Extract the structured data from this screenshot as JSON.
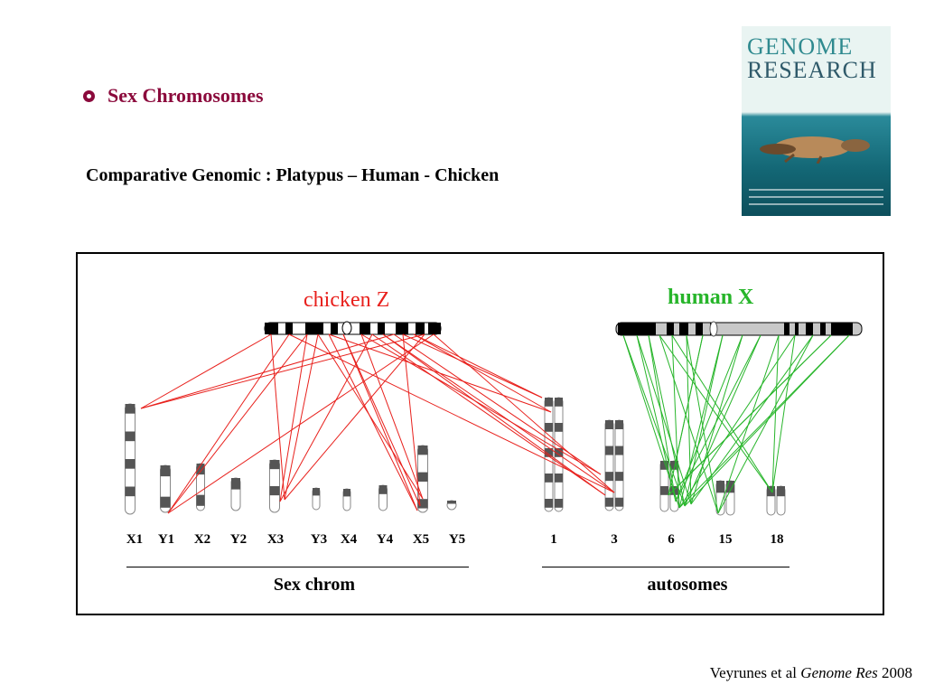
{
  "heading": {
    "section": "Sex Chromosomes"
  },
  "subtitle": "Comparative Genomic : Platypus – Human - Chicken",
  "cover": {
    "line1": "GENOME",
    "line2": "RESEARCH"
  },
  "figure": {
    "chicken_label": "chicken Z",
    "human_label": "human X",
    "sex_chromosomes": [
      "X1",
      "Y1",
      "X2",
      "Y2",
      "X3",
      "Y3",
      "X4",
      "Y4",
      "X5",
      "Y5"
    ],
    "autosomes": [
      "1",
      "3",
      "6",
      "15",
      "18"
    ],
    "group_sex": "Sex chrom",
    "group_auto": "autosomes",
    "colors": {
      "chicken": "#e8201c",
      "human": "#27b52a",
      "accent": "#8b0a3c"
    }
  },
  "citation": {
    "authors": "Veyrunes et al",
    "journal": "Genome Res",
    "year": "2008"
  }
}
